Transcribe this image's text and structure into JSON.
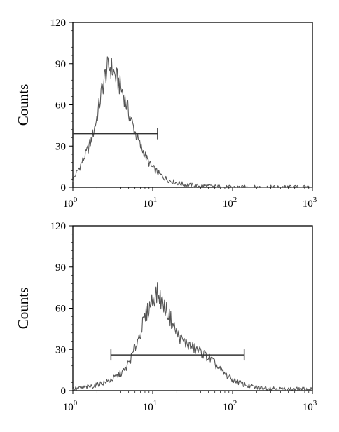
{
  "chart_data": [
    {
      "type": "line",
      "title": "",
      "xlabel": "",
      "ylabel": "Counts",
      "x_scale": "log",
      "xlim": [
        1,
        1000
      ],
      "ylim": [
        0,
        120
      ],
      "yticks": [
        "0",
        "30",
        "60",
        "90",
        "120"
      ],
      "xticks": [
        {
          "value": 1,
          "base": "10",
          "exp": "0"
        },
        {
          "value": 10,
          "base": "10",
          "exp": "1"
        },
        {
          "value": 100,
          "base": "10",
          "exp": "2"
        },
        {
          "value": 1000,
          "base": "10",
          "exp": "3"
        }
      ],
      "grid": false,
      "series": [
        {
          "x": [
            1.0,
            1.1,
            1.2,
            1.35,
            1.5,
            1.7,
            1.9,
            2.1,
            2.3,
            2.5,
            2.7,
            2.9,
            3.1,
            3.4,
            3.7,
            4.0,
            4.4,
            4.8,
            5.3,
            5.8,
            6.4,
            7.0,
            7.8,
            8.7,
            9.7,
            11,
            12.5,
            14,
            16,
            18,
            21,
            25,
            30,
            36,
            45,
            60,
            80,
            120,
            200,
            400,
            1000
          ],
          "y": [
            5,
            10,
            14,
            20,
            26,
            34,
            45,
            57,
            70,
            80,
            86,
            88,
            86,
            81,
            77,
            72,
            66,
            58,
            50,
            43,
            36,
            30,
            25,
            19,
            15,
            12,
            9,
            7,
            5,
            4,
            3,
            2,
            1.5,
            1,
            1,
            0.5,
            0,
            0,
            0,
            0,
            0
          ]
        }
      ],
      "marker_bar": {
        "x_start": 1.0,
        "x_end": 11.5,
        "y": 39
      }
    },
    {
      "type": "line",
      "title": "",
      "xlabel": "",
      "ylabel": "Counts",
      "x_scale": "log",
      "xlim": [
        1,
        1000
      ],
      "ylim": [
        0,
        120
      ],
      "yticks": [
        "0",
        "30",
        "60",
        "90",
        "120"
      ],
      "xticks": [
        {
          "value": 1,
          "base": "10",
          "exp": "0"
        },
        {
          "value": 10,
          "base": "10",
          "exp": "1"
        },
        {
          "value": 100,
          "base": "10",
          "exp": "2"
        },
        {
          "value": 1000,
          "base": "10",
          "exp": "3"
        }
      ],
      "grid": false,
      "series": [
        {
          "x": [
            1.0,
            1.3,
            1.7,
            2.2,
            2.8,
            3.5,
            4.5,
            5.5,
            6.5,
            7.5,
            8.5,
            9.5,
            10.5,
            11.5,
            12.5,
            14,
            16,
            18,
            20,
            23,
            27,
            32,
            38,
            45,
            55,
            65,
            80,
            100,
            130,
            170,
            220,
            300,
            450,
            700,
            1000
          ],
          "y": [
            1,
            2,
            3,
            5,
            7,
            10,
            15,
            25,
            37,
            48,
            57,
            64,
            69,
            71,
            67,
            61,
            55,
            48,
            42,
            37,
            34,
            31,
            29,
            26,
            22,
            17,
            12,
            8,
            5,
            3,
            2,
            2,
            1,
            1,
            1
          ]
        }
      ],
      "marker_bar": {
        "x_start": 3.0,
        "x_end": 140,
        "y": 26
      }
    }
  ]
}
